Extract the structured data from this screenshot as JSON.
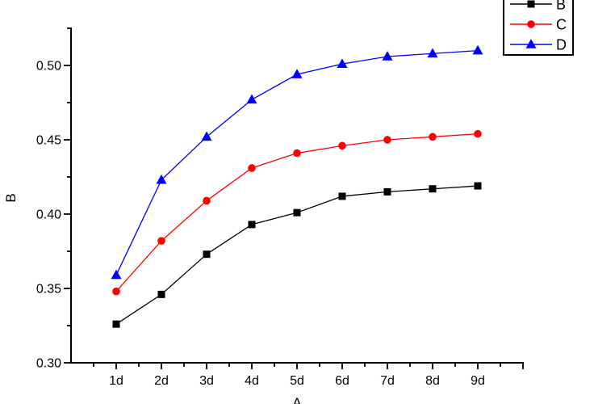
{
  "chart_data": {
    "type": "line",
    "title": "",
    "xlabel": "A",
    "ylabel": "B",
    "categories": [
      "1d",
      "2d",
      "3d",
      "4d",
      "5d",
      "6d",
      "7d",
      "8d",
      "9d"
    ],
    "x_values": [
      1,
      2,
      3,
      4,
      5,
      6,
      7,
      8,
      9
    ],
    "series": [
      {
        "name": "B",
        "color": "#000000",
        "marker": "square",
        "values": [
          0.326,
          0.346,
          0.373,
          0.393,
          0.401,
          0.412,
          0.415,
          0.417,
          0.419
        ]
      },
      {
        "name": "C",
        "color": "#ff0000",
        "marker": "circle",
        "values": [
          0.348,
          0.382,
          0.409,
          0.431,
          0.441,
          0.446,
          0.45,
          0.452,
          0.454
        ]
      },
      {
        "name": "D",
        "color": "#0000ff",
        "marker": "triangle",
        "values": [
          0.359,
          0.423,
          0.452,
          0.477,
          0.494,
          0.501,
          0.506,
          0.508,
          0.51
        ]
      }
    ],
    "xlim": [
      0,
      10
    ],
    "ylim": [
      0.3,
      0.525
    ],
    "y_major_ticks": [
      0.3,
      0.35,
      0.4,
      0.45,
      0.5
    ],
    "y_tick_labels": [
      "0.30",
      "0.35",
      "0.40",
      "0.45",
      "0.50"
    ],
    "y_minor_ticks": [
      0.325,
      0.375,
      0.425,
      0.475,
      0.525
    ],
    "x_minor_ticks": [
      0.5,
      1.5,
      2.5,
      3.5,
      4.5,
      5.5,
      6.5,
      7.5,
      8.5,
      9.5
    ],
    "x_end_tick": 10,
    "grid": false,
    "legend": {
      "position": "top-right",
      "entries": [
        "B",
        "C",
        "D"
      ]
    },
    "axis_color": "#000000",
    "background": "#ffffff"
  }
}
